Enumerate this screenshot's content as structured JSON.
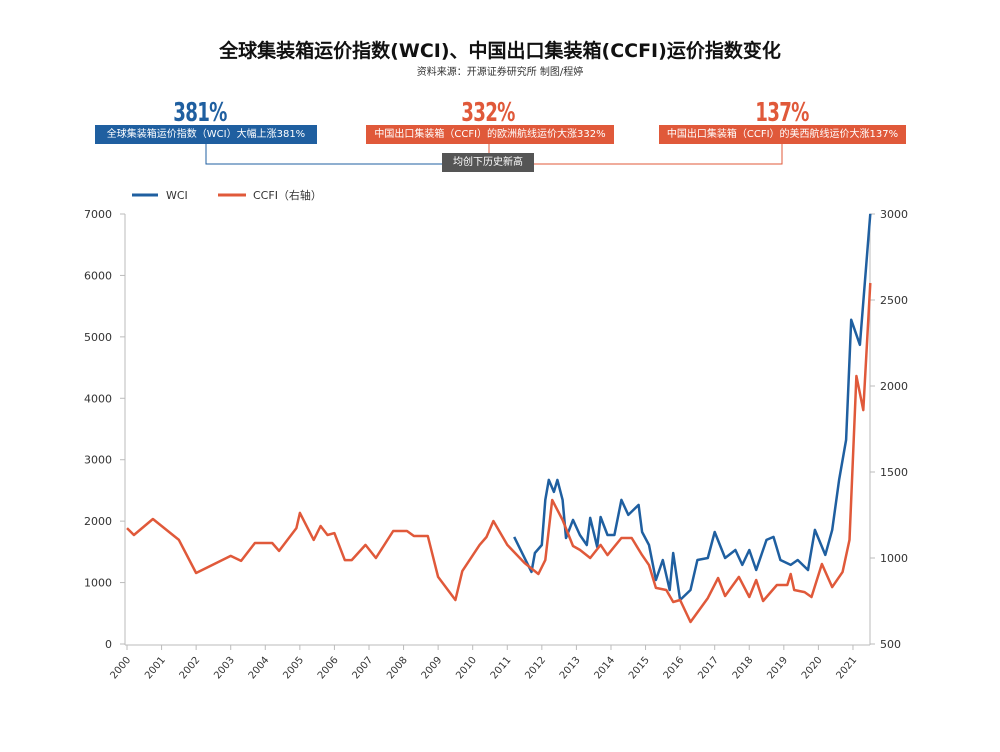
{
  "title": "全球集装箱运价指数(WCI)、中国出口集装箱(CCFI)运价指数变化",
  "source": "资料来源：开源证券研究所    制图/程婷",
  "callouts": [
    {
      "pct": "381%",
      "text": "全球集装箱运价指数（WCI）大幅上涨381%",
      "color": "#1f5fa0"
    },
    {
      "pct": "332%",
      "text": "中国出口集装箱（CCFI）的欧洲航线运价大涨332%",
      "color": "#e0593a"
    },
    {
      "pct": "137%",
      "text": "中国出口集装箱（CCFI）的美西航线运价大涨137%",
      "color": "#e0593a"
    }
  ],
  "center_label": "均创下历史新高",
  "chart_data": {
    "type": "line",
    "legend": [
      "WCI",
      "CCFI（右轴）"
    ],
    "legend_placement": "top-left",
    "xlabel": "",
    "ylabel": "",
    "x_ticks": [
      "2000",
      "2001",
      "2002",
      "2003",
      "2004",
      "2005",
      "2006",
      "2007",
      "2008",
      "2009",
      "2010",
      "2011",
      "2012",
      "2013",
      "2014",
      "2015",
      "2016",
      "2017",
      "2018",
      "2019",
      "2020",
      "2021"
    ],
    "y_left_ticks": [
      "0",
      "1000",
      "2000",
      "3000",
      "4000",
      "5000",
      "6000",
      "7000"
    ],
    "y_left_range": [
      0,
      7000
    ],
    "y_right_ticks": [
      "500",
      "1000",
      "1500",
      "2000",
      "2500",
      "3000"
    ],
    "y_right_range": [
      500,
      3000
    ],
    "series": [
      {
        "name": "WCI",
        "axis": "left",
        "color": "#1f5fa0",
        "points": [
          [
            2011.2,
            1743
          ],
          [
            2011.4,
            1515
          ],
          [
            2011.7,
            1173
          ],
          [
            2011.8,
            1482
          ],
          [
            2012.0,
            1612
          ],
          [
            2012.1,
            2345
          ],
          [
            2012.2,
            2671
          ],
          [
            2012.35,
            2476
          ],
          [
            2012.45,
            2671
          ],
          [
            2012.6,
            2345
          ],
          [
            2012.7,
            1726
          ],
          [
            2012.9,
            2020
          ],
          [
            2013.1,
            1775
          ],
          [
            2013.3,
            1612
          ],
          [
            2013.4,
            2052
          ],
          [
            2013.6,
            1580
          ],
          [
            2013.7,
            2068
          ],
          [
            2013.9,
            1775
          ],
          [
            2014.1,
            1775
          ],
          [
            2014.3,
            2345
          ],
          [
            2014.5,
            2101
          ],
          [
            2014.8,
            2264
          ],
          [
            2014.9,
            1824
          ],
          [
            2015.1,
            1612
          ],
          [
            2015.3,
            1042
          ],
          [
            2015.5,
            1368
          ],
          [
            2015.7,
            879
          ],
          [
            2015.8,
            1482
          ],
          [
            2016.0,
            717
          ],
          [
            2016.3,
            879
          ],
          [
            2016.5,
            1368
          ],
          [
            2016.8,
            1400
          ],
          [
            2017.0,
            1824
          ],
          [
            2017.3,
            1400
          ],
          [
            2017.6,
            1531
          ],
          [
            2017.8,
            1287
          ],
          [
            2018.0,
            1531
          ],
          [
            2018.2,
            1205
          ],
          [
            2018.5,
            1694
          ],
          [
            2018.7,
            1743
          ],
          [
            2018.9,
            1368
          ],
          [
            2019.2,
            1287
          ],
          [
            2019.4,
            1368
          ],
          [
            2019.7,
            1205
          ],
          [
            2019.9,
            1857
          ],
          [
            2020.2,
            1450
          ],
          [
            2020.4,
            1857
          ],
          [
            2020.6,
            2671
          ],
          [
            2020.8,
            3322
          ],
          [
            2020.95,
            5277
          ],
          [
            2021.2,
            4870
          ],
          [
            2021.5,
            7003
          ]
        ]
      },
      {
        "name": "CCFI（右轴）",
        "axis": "right",
        "color": "#e0593a",
        "points": [
          [
            2000,
            1174
          ],
          [
            2000.2,
            1134
          ],
          [
            2000.75,
            1227
          ],
          [
            2001.5,
            1105
          ],
          [
            2002,
            913
          ],
          [
            2003,
            1012
          ],
          [
            2003.3,
            983
          ],
          [
            2003.7,
            1087
          ],
          [
            2004.2,
            1087
          ],
          [
            2004.4,
            1041
          ],
          [
            2004.9,
            1174
          ],
          [
            2005,
            1262
          ],
          [
            2005.4,
            1105
          ],
          [
            2005.6,
            1186
          ],
          [
            2005.8,
            1134
          ],
          [
            2006,
            1145
          ],
          [
            2006.3,
            988
          ],
          [
            2006.5,
            988
          ],
          [
            2006.9,
            1076
          ],
          [
            2007.2,
            1000
          ],
          [
            2007.7,
            1157
          ],
          [
            2008.1,
            1157
          ],
          [
            2008.3,
            1128
          ],
          [
            2008.7,
            1128
          ],
          [
            2009,
            890
          ],
          [
            2009.5,
            756
          ],
          [
            2009.7,
            924
          ],
          [
            2010.2,
            1076
          ],
          [
            2010.4,
            1122
          ],
          [
            2010.6,
            1215
          ],
          [
            2011,
            1076
          ],
          [
            2011.5,
            971
          ],
          [
            2011.9,
            907
          ],
          [
            2012.1,
            988
          ],
          [
            2012.3,
            1337
          ],
          [
            2012.6,
            1221
          ],
          [
            2012.9,
            1070
          ],
          [
            2013.1,
            1047
          ],
          [
            2013.4,
            1000
          ],
          [
            2013.7,
            1076
          ],
          [
            2013.9,
            1017
          ],
          [
            2014.3,
            1116
          ],
          [
            2014.6,
            1116
          ],
          [
            2014.9,
            1017
          ],
          [
            2015.1,
            959
          ],
          [
            2015.3,
            826
          ],
          [
            2015.6,
            814
          ],
          [
            2015.8,
            744
          ],
          [
            2016,
            756
          ],
          [
            2016.3,
            628
          ],
          [
            2016.8,
            767
          ],
          [
            2017.1,
            884
          ],
          [
            2017.3,
            779
          ],
          [
            2017.7,
            890
          ],
          [
            2018,
            773
          ],
          [
            2018.2,
            872
          ],
          [
            2018.4,
            750
          ],
          [
            2018.8,
            843
          ],
          [
            2019.1,
            843
          ],
          [
            2019.2,
            907
          ],
          [
            2019.3,
            814
          ],
          [
            2019.6,
            802
          ],
          [
            2019.8,
            773
          ],
          [
            2020.1,
            965
          ],
          [
            2020.4,
            831
          ],
          [
            2020.7,
            919
          ],
          [
            2020.9,
            1105
          ],
          [
            2021.1,
            2058
          ],
          [
            2021.3,
            1860
          ],
          [
            2021.5,
            2599
          ]
        ]
      }
    ]
  }
}
